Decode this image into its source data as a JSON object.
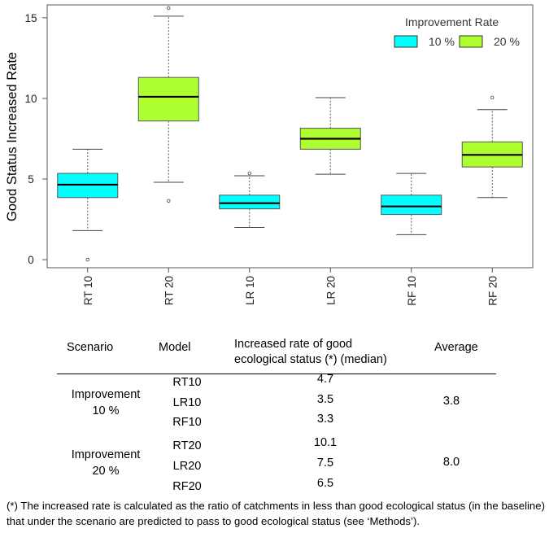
{
  "chart_data": {
    "type": "boxplot",
    "ylabel": "Good Status Increased Rate",
    "xlabel": "",
    "ylim": [
      -0.5,
      15.8
    ],
    "yticks": [
      0,
      5,
      10,
      15
    ],
    "legend": {
      "title": "Improvement Rate",
      "position": "top-right",
      "entries": [
        {
          "label": "10 %",
          "color": "#00FFFF"
        },
        {
          "label": "20 %",
          "color": "#ADFF2F"
        }
      ]
    },
    "boxes": [
      {
        "label": "RT 10",
        "group": "10 %",
        "color": "#00FFFF",
        "min": 1.8,
        "q1": 3.85,
        "median": 4.65,
        "q3": 5.35,
        "max": 6.85,
        "outliers": [
          0.0
        ]
      },
      {
        "label": "RT 20",
        "group": "20 %",
        "color": "#ADFF2F",
        "min": 4.8,
        "q1": 8.6,
        "median": 10.1,
        "q3": 11.3,
        "max": 15.1,
        "outliers": [
          15.6,
          3.65
        ]
      },
      {
        "label": "LR 10",
        "group": "10 %",
        "color": "#00FFFF",
        "min": 2.0,
        "q1": 3.15,
        "median": 3.5,
        "q3": 4.0,
        "max": 5.2,
        "outliers": [
          5.35
        ]
      },
      {
        "label": "LR 20",
        "group": "20 %",
        "color": "#ADFF2F",
        "min": 5.3,
        "q1": 6.85,
        "median": 7.5,
        "q3": 8.15,
        "max": 10.05,
        "outliers": []
      },
      {
        "label": "RF 10",
        "group": "10 %",
        "color": "#00FFFF",
        "min": 1.55,
        "q1": 2.8,
        "median": 3.3,
        "q3": 4.0,
        "max": 5.35,
        "outliers": []
      },
      {
        "label": "RF 20",
        "group": "20 %",
        "color": "#ADFF2F",
        "min": 3.85,
        "q1": 5.75,
        "median": 6.5,
        "q3": 7.3,
        "max": 9.3,
        "outliers": [
          10.05
        ]
      }
    ]
  },
  "table": {
    "headers": {
      "scenario": "Scenario",
      "model": "Model",
      "rate_line1": "Increased rate of good",
      "rate_line2": "ecological status (*) (median)",
      "average": "Average"
    },
    "groups": [
      {
        "scenario_line1": "Improvement",
        "scenario_line2": "10 %",
        "average": "3.8",
        "rows": [
          {
            "model": "RT10",
            "value": "4.7"
          },
          {
            "model": "LR10",
            "value": "3.5"
          },
          {
            "model": "RF10",
            "value": "3.3"
          }
        ]
      },
      {
        "scenario_line1": "Improvement",
        "scenario_line2": "20 %",
        "average": "8.0",
        "rows": [
          {
            "model": "RT20",
            "value": "10.1"
          },
          {
            "model": "LR20",
            "value": "7.5"
          },
          {
            "model": "RF20",
            "value": "6.5"
          }
        ]
      }
    ]
  },
  "footnote": "(*) The increased rate is calculated as the ratio of catchments in less than good ecological status (in the baseline) that under the scenario are predicted to pass to good ecological status (see ‘Methods’)."
}
